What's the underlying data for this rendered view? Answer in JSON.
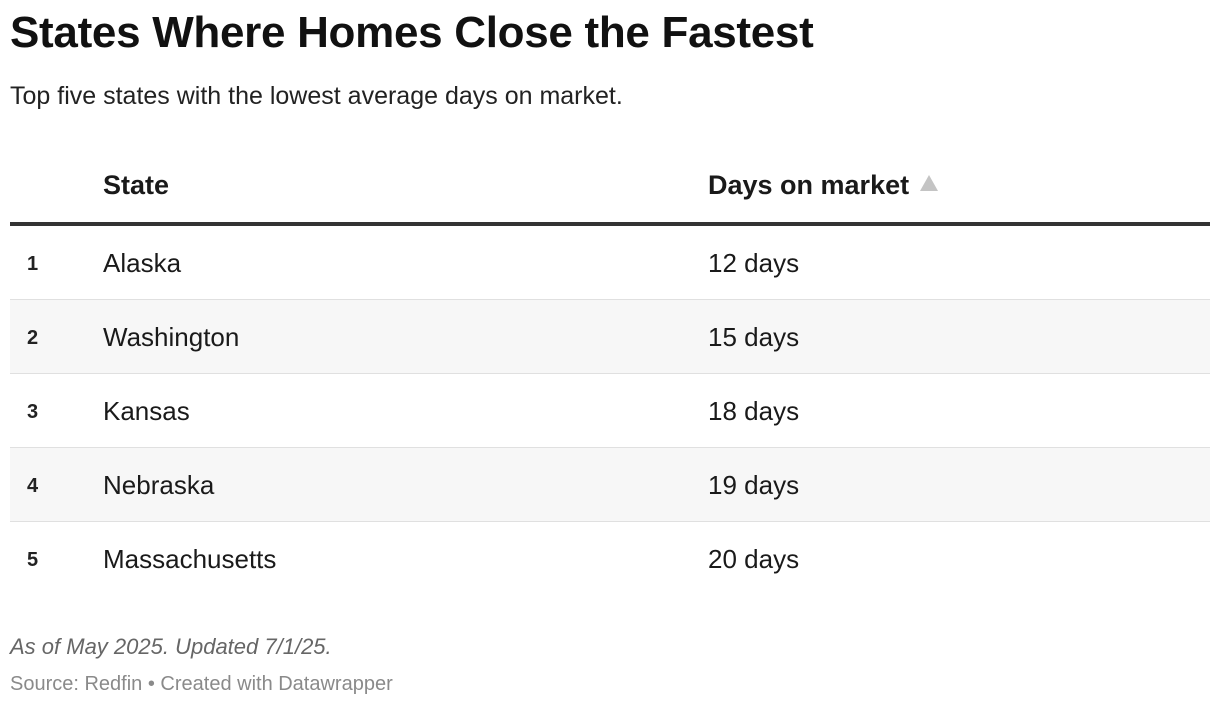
{
  "title": "States Where Homes Close the Fastest",
  "subtitle": "Top five states with the lowest average days on market.",
  "table": {
    "columns": {
      "state": "State",
      "days": "Days on market"
    },
    "sort_icon": "sort-ascending-triangle-icon",
    "rows": [
      {
        "rank": "1",
        "state": "Alaska",
        "days": "12 days"
      },
      {
        "rank": "2",
        "state": "Washington",
        "days": "15 days"
      },
      {
        "rank": "3",
        "state": "Kansas",
        "days": "18 days"
      },
      {
        "rank": "4",
        "state": "Nebraska",
        "days": "19 days"
      },
      {
        "rank": "5",
        "state": "Massachusetts",
        "days": "20 days"
      }
    ]
  },
  "notes": "As of May 2025. Updated 7/1/25.",
  "footer": "Source: Redfin • Created with Datawrapper",
  "colors": {
    "header_rule": "#333333",
    "row_stripe": "#f7f7f7",
    "row_divider": "#e0e0e0",
    "sort_icon": "#c4c4c4",
    "notes_text": "#666666",
    "footer_text": "#8a8a8a"
  },
  "chart_data": {
    "type": "table",
    "title": "States Where Homes Close the Fastest",
    "subtitle": "Top five states with the lowest average days on market.",
    "columns": [
      "State",
      "Days on market"
    ],
    "sorted_by": "Days on market",
    "sort_direction": "ascending",
    "categories": [
      "Alaska",
      "Washington",
      "Kansas",
      "Nebraska",
      "Massachusetts"
    ],
    "values": [
      12,
      15,
      18,
      19,
      20
    ],
    "unit": "days"
  }
}
